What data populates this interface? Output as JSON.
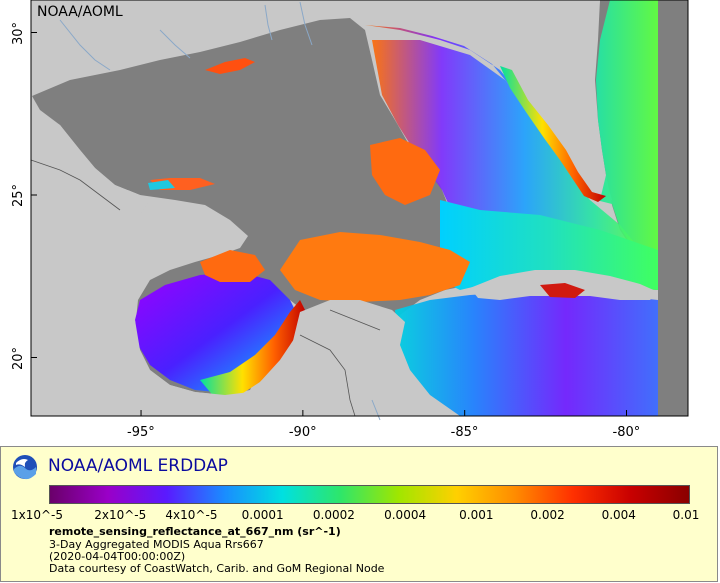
{
  "credit": "NOAA/AOML",
  "map": {
    "lat_ticks": [
      {
        "label": "30°",
        "lat": 30
      },
      {
        "label": "25°",
        "lat": 25
      },
      {
        "label": "20°",
        "lat": 20
      }
    ],
    "lon_ticks": [
      {
        "label": "-95°",
        "lon": -95
      },
      {
        "label": "-90°",
        "lon": -90
      },
      {
        "label": "-85°",
        "lon": -85
      },
      {
        "label": "-80°",
        "lon": -80
      }
    ],
    "land_color": "#c8c8c8",
    "nodata_color": "#7f7f7f",
    "river_color": "#8aa8c8"
  },
  "legend": {
    "title": "NOAA/AOML ERDDAP",
    "background": "#ffffcc",
    "colorbar_stops": [
      "#6a006a",
      "#9a00c8",
      "#5a1aff",
      "#1a8cff",
      "#00e0e0",
      "#2ee66a",
      "#a0e600",
      "#ffd000",
      "#ff8c00",
      "#ff3000",
      "#c80000",
      "#8a0000"
    ],
    "ticks": [
      "1x10^-5",
      "2x10^-5",
      "4x10^-5",
      "0.0001",
      "0.0002",
      "0.0004",
      "0.001",
      "0.002",
      "0.004",
      "0.01"
    ],
    "variable": "remote_sensing_reflectance_at_667_nm (sr^-1)",
    "line1": "3-Day Aggregated MODIS Aqua Rrs667",
    "line2": "(2020-04-04T00:00:00Z)",
    "line3": "Data courtesy of CoastWatch, Carib. and GoM Regional Node"
  }
}
